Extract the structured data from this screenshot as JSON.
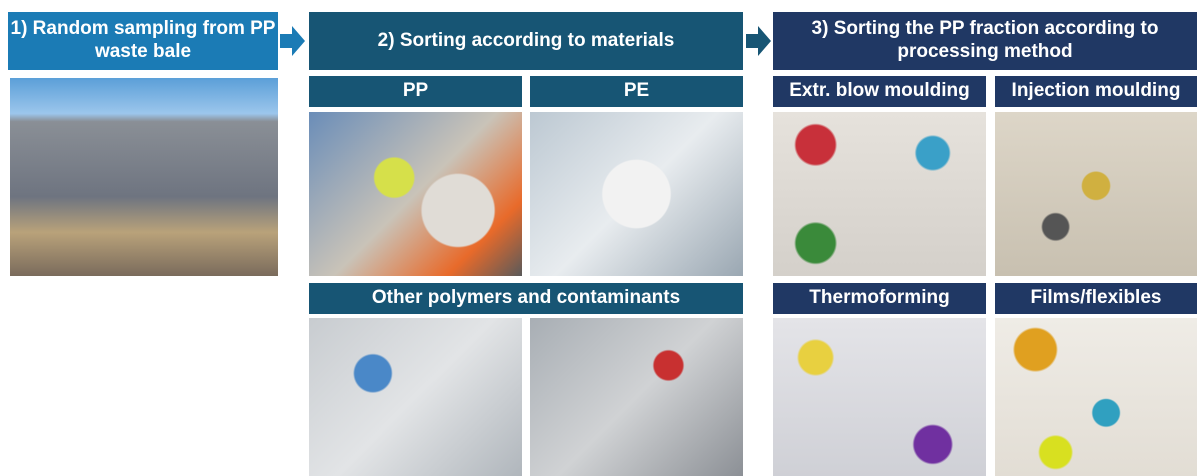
{
  "steps": [
    {
      "title": "1) Random sampling from PP waste bale"
    },
    {
      "title": "2) Sorting according to materials",
      "panels": [
        "PP",
        "PE",
        "Other polymers and contaminants"
      ]
    },
    {
      "title": "3) Sorting the PP fraction according to processing method",
      "panels": [
        "Extr. blow moulding",
        "Injection moulding",
        "Thermoforming",
        "Films/flexibles"
      ]
    }
  ]
}
